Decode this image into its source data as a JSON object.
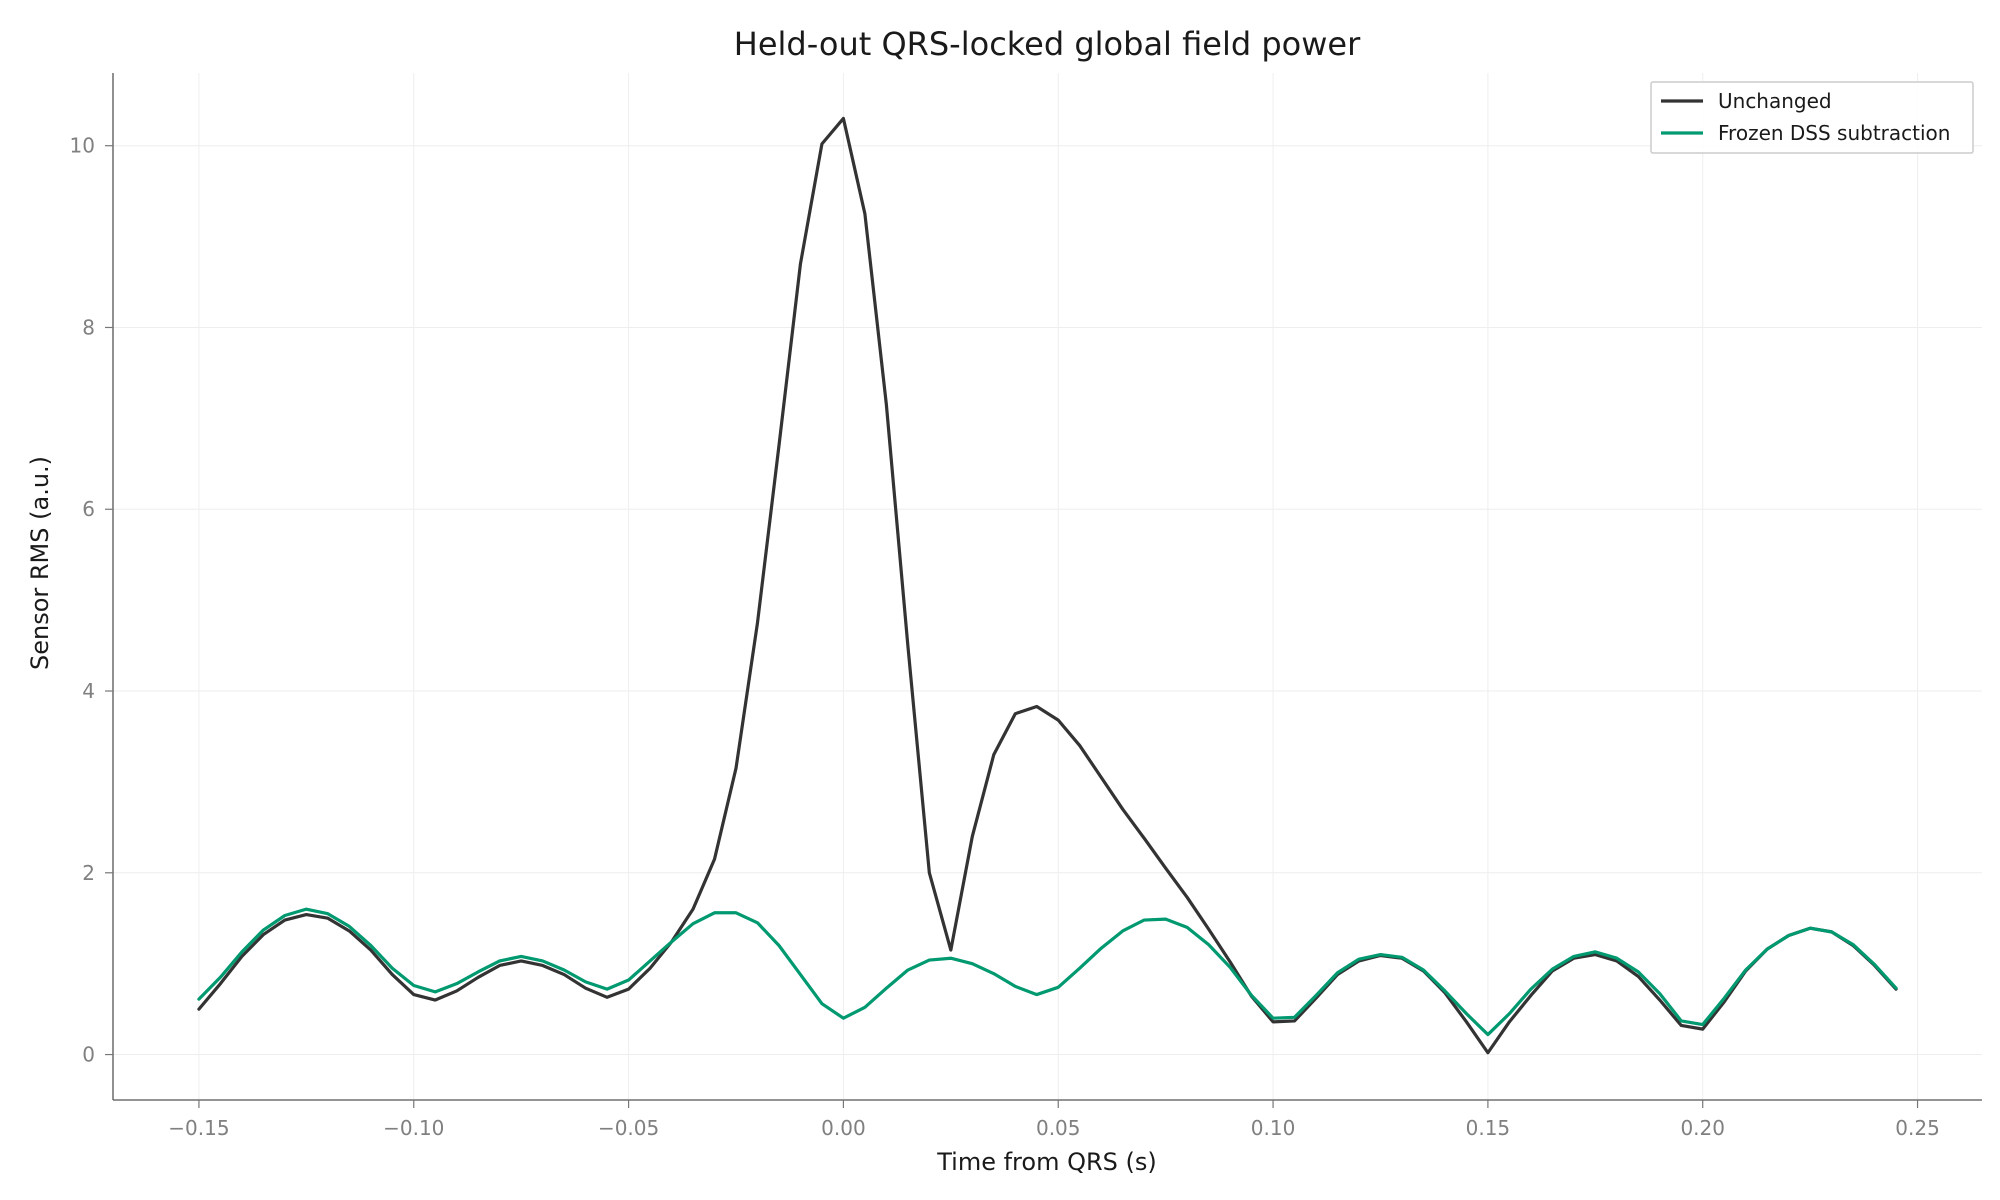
{
  "chart_data": {
    "type": "line",
    "title": "Held-out QRS-locked global field power",
    "xlabel": "Time from QRS (s)",
    "ylabel": "Sensor RMS (a.u.)",
    "xlim": [
      -0.17,
      0.265
    ],
    "ylim": [
      -0.5,
      10.8
    ],
    "x_ticks": [
      -0.15,
      -0.1,
      -0.05,
      0.0,
      0.05,
      0.1,
      0.15,
      0.2,
      0.25
    ],
    "x_tick_labels": [
      "−0.15",
      "−0.10",
      "−0.05",
      "0.00",
      "0.05",
      "0.10",
      "0.15",
      "0.20",
      "0.25"
    ],
    "y_ticks": [
      0,
      2,
      4,
      6,
      8,
      10
    ],
    "y_tick_labels": [
      "0",
      "2",
      "4",
      "6",
      "8",
      "10"
    ],
    "grid": true,
    "legend_position": "top-right",
    "x_start": -0.15,
    "x_step": 0.005,
    "series": [
      {
        "name": "Unchanged",
        "color": "#333333",
        "values": [
          0.5,
          0.78,
          1.08,
          1.32,
          1.48,
          1.54,
          1.5,
          1.36,
          1.15,
          0.88,
          0.66,
          0.6,
          0.7,
          0.85,
          0.98,
          1.03,
          0.98,
          0.88,
          0.73,
          0.63,
          0.72,
          0.95,
          1.24,
          1.6,
          2.15,
          3.15,
          4.75,
          6.7,
          8.7,
          10.02,
          10.3,
          9.25,
          7.15,
          4.5,
          2.0,
          1.15,
          2.4,
          3.3,
          3.75,
          3.83,
          3.68,
          3.4,
          3.05,
          2.7,
          2.38,
          2.05,
          1.73,
          1.38,
          1.02,
          0.64,
          0.36,
          0.37,
          0.62,
          0.88,
          1.03,
          1.09,
          1.06,
          0.92,
          0.68,
          0.36,
          0.02,
          0.36,
          0.65,
          0.92,
          1.06,
          1.1,
          1.03,
          0.86,
          0.6,
          0.32,
          0.28,
          0.58,
          0.92,
          1.16,
          1.31,
          1.39,
          1.35,
          1.2,
          0.98,
          0.72
        ]
      },
      {
        "name": "Frozen DSS subtraction",
        "color": "#009970",
        "values": [
          0.61,
          0.85,
          1.13,
          1.37,
          1.53,
          1.6,
          1.55,
          1.41,
          1.2,
          0.95,
          0.76,
          0.69,
          0.78,
          0.91,
          1.03,
          1.08,
          1.03,
          0.93,
          0.8,
          0.72,
          0.82,
          1.03,
          1.24,
          1.44,
          1.56,
          1.56,
          1.45,
          1.2,
          0.88,
          0.56,
          0.4,
          0.52,
          0.73,
          0.93,
          1.04,
          1.06,
          1.0,
          0.89,
          0.75,
          0.66,
          0.74,
          0.95,
          1.17,
          1.36,
          1.48,
          1.49,
          1.4,
          1.21,
          0.96,
          0.65,
          0.4,
          0.41,
          0.65,
          0.9,
          1.05,
          1.1,
          1.07,
          0.93,
          0.7,
          0.45,
          0.22,
          0.45,
          0.72,
          0.94,
          1.08,
          1.13,
          1.06,
          0.91,
          0.67,
          0.37,
          0.33,
          0.62,
          0.93,
          1.16,
          1.31,
          1.39,
          1.35,
          1.21,
          0.99,
          0.73
        ]
      }
    ]
  }
}
